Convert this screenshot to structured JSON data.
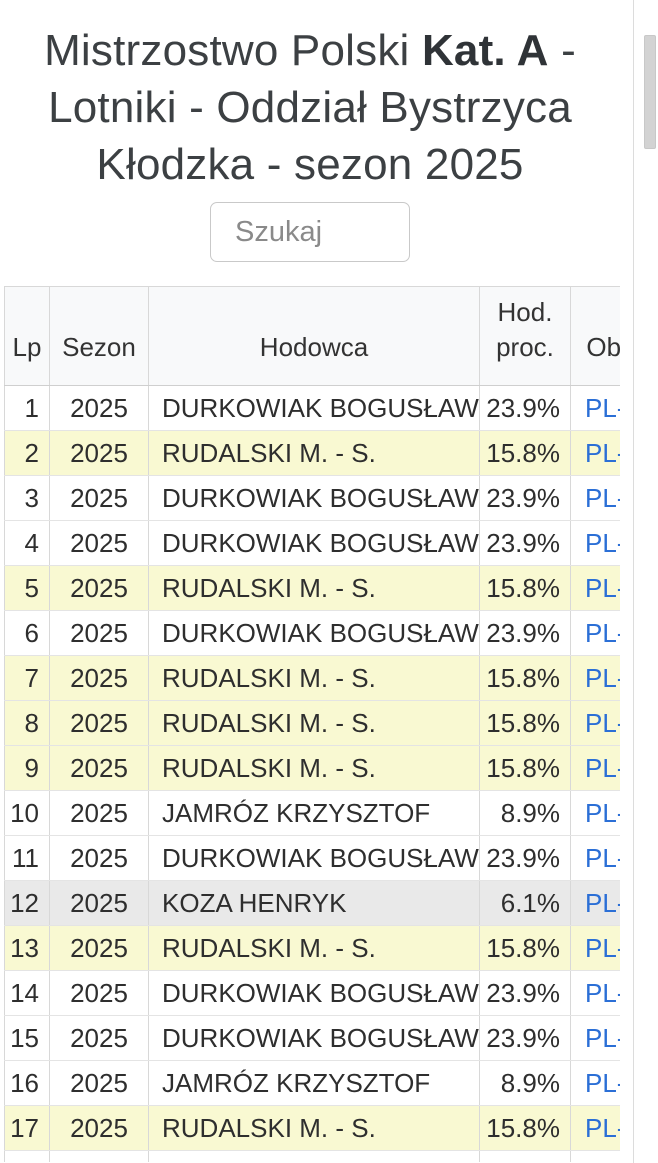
{
  "title": {
    "prefix": "Mistrzostwo Polski ",
    "highlight": "Kat. A",
    "suffix": " - Lotniki - Oddział Bystrzyca Kłodzka - sezon 2025"
  },
  "search": {
    "placeholder": "Szukaj",
    "value": ""
  },
  "table": {
    "columns": [
      {
        "key": "lp",
        "label": "Lp"
      },
      {
        "key": "sezon",
        "label": "Sezon"
      },
      {
        "key": "hodowca",
        "label": "Hodowca"
      },
      {
        "key": "proc",
        "label": "Hod. proc."
      },
      {
        "key": "ring",
        "label": "Obrączka"
      }
    ],
    "rows": [
      {
        "lp": "1",
        "sezon": "2025",
        "hodowca": "DURKOWIAK BOGUSŁAW",
        "proc": "23.9%",
        "ring": "PL-",
        "bg": "white"
      },
      {
        "lp": "2",
        "sezon": "2025",
        "hodowca": "RUDALSKI M. - S.",
        "proc": "15.8%",
        "ring": "PL-",
        "bg": "yellow"
      },
      {
        "lp": "3",
        "sezon": "2025",
        "hodowca": "DURKOWIAK BOGUSŁAW",
        "proc": "23.9%",
        "ring": "PL-",
        "bg": "white"
      },
      {
        "lp": "4",
        "sezon": "2025",
        "hodowca": "DURKOWIAK BOGUSŁAW",
        "proc": "23.9%",
        "ring": "PL-",
        "bg": "white"
      },
      {
        "lp": "5",
        "sezon": "2025",
        "hodowca": "RUDALSKI M. - S.",
        "proc": "15.8%",
        "ring": "PL-",
        "bg": "yellow"
      },
      {
        "lp": "6",
        "sezon": "2025",
        "hodowca": "DURKOWIAK BOGUSŁAW",
        "proc": "23.9%",
        "ring": "PL-",
        "bg": "white"
      },
      {
        "lp": "7",
        "sezon": "2025",
        "hodowca": "RUDALSKI M. - S.",
        "proc": "15.8%",
        "ring": "PL-",
        "bg": "yellow"
      },
      {
        "lp": "8",
        "sezon": "2025",
        "hodowca": "RUDALSKI M. - S.",
        "proc": "15.8%",
        "ring": "PL-",
        "bg": "yellow"
      },
      {
        "lp": "9",
        "sezon": "2025",
        "hodowca": "RUDALSKI M. - S.",
        "proc": "15.8%",
        "ring": "PL-",
        "bg": "yellow"
      },
      {
        "lp": "10",
        "sezon": "2025",
        "hodowca": "JAMRÓZ KRZYSZTOF",
        "proc": "8.9%",
        "ring": "PL-",
        "bg": "white"
      },
      {
        "lp": "11",
        "sezon": "2025",
        "hodowca": "DURKOWIAK BOGUSŁAW",
        "proc": "23.9%",
        "ring": "PL-",
        "bg": "white"
      },
      {
        "lp": "12",
        "sezon": "2025",
        "hodowca": "KOZA HENRYK",
        "proc": "6.1%",
        "ring": "PL-",
        "bg": "gray"
      },
      {
        "lp": "13",
        "sezon": "2025",
        "hodowca": "RUDALSKI M. - S.",
        "proc": "15.8%",
        "ring": "PL-",
        "bg": "yellow"
      },
      {
        "lp": "14",
        "sezon": "2025",
        "hodowca": "DURKOWIAK BOGUSŁAW",
        "proc": "23.9%",
        "ring": "PL-",
        "bg": "white"
      },
      {
        "lp": "15",
        "sezon": "2025",
        "hodowca": "DURKOWIAK BOGUSŁAW",
        "proc": "23.9%",
        "ring": "PL-",
        "bg": "white"
      },
      {
        "lp": "16",
        "sezon": "2025",
        "hodowca": "JAMRÓZ KRZYSZTOF",
        "proc": "8.9%",
        "ring": "PL-",
        "bg": "white"
      },
      {
        "lp": "17",
        "sezon": "2025",
        "hodowca": "RUDALSKI M. - S.",
        "proc": "15.8%",
        "ring": "PL-",
        "bg": "yellow"
      },
      {
        "lp": "",
        "sezon": "",
        "hodowca": "",
        "proc": "",
        "ring": "",
        "bg": "white"
      }
    ]
  },
  "colors": {
    "link": "#2b6fd6",
    "row_highlight": "#f9f9d2",
    "row_muted": "#e9e9e9",
    "header_bg": "#f8f9fa"
  }
}
